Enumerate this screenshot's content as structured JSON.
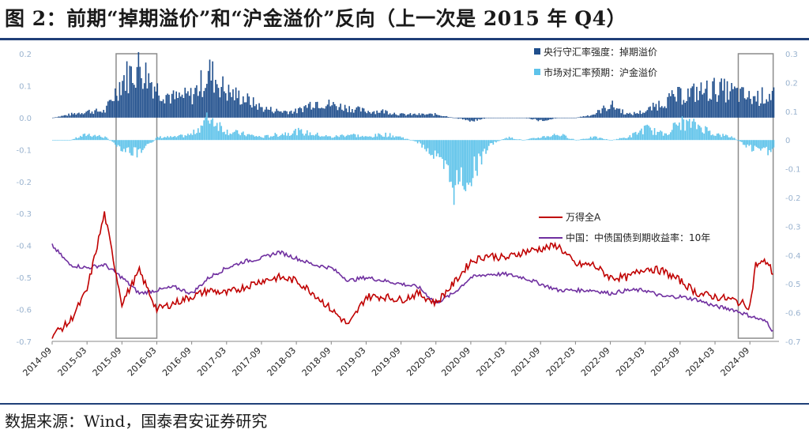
{
  "title": "图 2：前期“掉期溢价”和“沪金溢价”反向（上一次是 2015 年 Q4）",
  "source": "数据来源：Wind，国泰君安证券研究",
  "colors": {
    "swap_premium": "#1f4e8c",
    "gold_premium": "#5ec3ea",
    "wind_a": "#c00000",
    "cgb10y": "#7030a0",
    "box": "#8c8c8c",
    "rule": "#1f3f78"
  },
  "chart_data": {
    "type": "bar+line",
    "x_ticks": [
      "2014-09",
      "2015-03",
      "2015-09",
      "2016-03",
      "2016-09",
      "2017-03",
      "2017-09",
      "2018-03",
      "2018-09",
      "2019-03",
      "2019-09",
      "2020-03",
      "2020-09",
      "2021-03",
      "2021-09",
      "2022-03",
      "2022-09",
      "2023-03",
      "2023-09",
      "2024-03",
      "2024-09"
    ],
    "y_left_ticks": [
      "0.2",
      "0.1",
      "0.0",
      "-0.1",
      "-0.2",
      "-0.3",
      "-0.4",
      "-0.5",
      "-0.6",
      "-0.7"
    ],
    "y_left_range": [
      -0.7,
      0.2
    ],
    "y_right_ticks": [
      "0.3",
      "0.2",
      "0.1",
      "0",
      "-0.1",
      "-0.2",
      "-0.3",
      "-0.4",
      "-0.5",
      "-0.6",
      "-0.7"
    ],
    "y_right_range": [
      -0.7,
      0.3
    ],
    "legend_top": "top-right",
    "legend_bottom": "center-right",
    "highlight_boxes": [
      {
        "from": "2015-08",
        "to": "2016-03"
      },
      {
        "from": "2024-07",
        "to": "2025-01"
      }
    ],
    "series": [
      {
        "name": "央行守汇率强度：掉期溢价",
        "kind": "bar",
        "axis": "left",
        "points": [
          [
            "2014-09",
            0.0
          ],
          [
            "2014-12",
            0.01
          ],
          [
            "2015-03",
            0.02
          ],
          [
            "2015-06",
            0.02
          ],
          [
            "2015-09",
            0.12
          ],
          [
            "2015-12",
            0.16
          ],
          [
            "2016-03",
            0.09
          ],
          [
            "2016-06",
            0.06
          ],
          [
            "2016-09",
            0.07
          ],
          [
            "2016-12",
            0.14
          ],
          [
            "2017-03",
            0.08
          ],
          [
            "2017-06",
            0.06
          ],
          [
            "2017-09",
            0.03
          ],
          [
            "2017-12",
            0.02
          ],
          [
            "2018-03",
            0.02
          ],
          [
            "2018-06",
            0.05
          ],
          [
            "2018-09",
            0.04
          ],
          [
            "2018-12",
            0.03
          ],
          [
            "2019-03",
            0.02
          ],
          [
            "2019-06",
            0.02
          ],
          [
            "2019-09",
            0.01
          ],
          [
            "2019-12",
            0.01
          ],
          [
            "2020-03",
            0.01
          ],
          [
            "2020-06",
            0.0
          ],
          [
            "2020-09",
            -0.01
          ],
          [
            "2020-12",
            0.0
          ],
          [
            "2021-03",
            0.0
          ],
          [
            "2021-06",
            0.0
          ],
          [
            "2021-09",
            -0.01
          ],
          [
            "2021-12",
            0.0
          ],
          [
            "2022-03",
            0.0
          ],
          [
            "2022-06",
            0.01
          ],
          [
            "2022-09",
            0.04
          ],
          [
            "2022-12",
            0.01
          ],
          [
            "2023-03",
            0.02
          ],
          [
            "2023-06",
            0.05
          ],
          [
            "2023-09",
            0.07
          ],
          [
            "2023-12",
            0.08
          ],
          [
            "2024-03",
            0.09
          ],
          [
            "2024-06",
            0.08
          ],
          [
            "2024-09",
            0.06
          ],
          [
            "2024-12",
            0.07
          ],
          [
            "2025-01",
            0.08
          ]
        ]
      },
      {
        "name": "市场对汇率预期：沪金溢价",
        "kind": "bar",
        "axis": "right",
        "points": [
          [
            "2014-09",
            0.0
          ],
          [
            "2014-12",
            0.0
          ],
          [
            "2015-03",
            0.02
          ],
          [
            "2015-06",
            0.01
          ],
          [
            "2015-09",
            -0.03
          ],
          [
            "2015-12",
            -0.05
          ],
          [
            "2016-03",
            0.01
          ],
          [
            "2016-06",
            0.01
          ],
          [
            "2016-09",
            0.02
          ],
          [
            "2016-12",
            0.08
          ],
          [
            "2017-03",
            0.03
          ],
          [
            "2017-06",
            0.02
          ],
          [
            "2017-09",
            0.01
          ],
          [
            "2017-12",
            0.02
          ],
          [
            "2018-03",
            0.03
          ],
          [
            "2018-06",
            0.02
          ],
          [
            "2018-09",
            0.01
          ],
          [
            "2018-12",
            0.02
          ],
          [
            "2019-03",
            0.01
          ],
          [
            "2019-06",
            0.02
          ],
          [
            "2019-09",
            0.01
          ],
          [
            "2019-12",
            -0.01
          ],
          [
            "2020-03",
            -0.06
          ],
          [
            "2020-06",
            -0.16
          ],
          [
            "2020-09",
            -0.12
          ],
          [
            "2020-12",
            -0.02
          ],
          [
            "2021-03",
            0.01
          ],
          [
            "2021-06",
            0.0
          ],
          [
            "2021-09",
            0.01
          ],
          [
            "2021-12",
            0.02
          ],
          [
            "2022-03",
            0.0
          ],
          [
            "2022-06",
            0.01
          ],
          [
            "2022-09",
            0.0
          ],
          [
            "2022-12",
            0.01
          ],
          [
            "2023-03",
            0.04
          ],
          [
            "2023-06",
            0.02
          ],
          [
            "2023-09",
            0.06
          ],
          [
            "2023-12",
            0.05
          ],
          [
            "2024-03",
            0.02
          ],
          [
            "2024-06",
            0.01
          ],
          [
            "2024-09",
            -0.03
          ],
          [
            "2024-12",
            -0.04
          ],
          [
            "2025-01",
            -0.02
          ]
        ]
      },
      {
        "name": "万得全A",
        "kind": "line",
        "axis": "left",
        "points": [
          [
            "2014-09",
            -0.68
          ],
          [
            "2014-12",
            -0.64
          ],
          [
            "2015-03",
            -0.54
          ],
          [
            "2015-06",
            -0.3
          ],
          [
            "2015-09",
            -0.58
          ],
          [
            "2015-12",
            -0.48
          ],
          [
            "2016-03",
            -0.6
          ],
          [
            "2016-06",
            -0.58
          ],
          [
            "2016-09",
            -0.56
          ],
          [
            "2016-12",
            -0.54
          ],
          [
            "2017-03",
            -0.55
          ],
          [
            "2017-06",
            -0.53
          ],
          [
            "2017-09",
            -0.51
          ],
          [
            "2017-12",
            -0.5
          ],
          [
            "2018-03",
            -0.51
          ],
          [
            "2018-06",
            -0.55
          ],
          [
            "2018-09",
            -0.6
          ],
          [
            "2018-12",
            -0.65
          ],
          [
            "2019-03",
            -0.56
          ],
          [
            "2019-06",
            -0.56
          ],
          [
            "2019-09",
            -0.57
          ],
          [
            "2019-12",
            -0.55
          ],
          [
            "2020-03",
            -0.58
          ],
          [
            "2020-06",
            -0.52
          ],
          [
            "2020-09",
            -0.45
          ],
          [
            "2020-12",
            -0.43
          ],
          [
            "2021-03",
            -0.44
          ],
          [
            "2021-06",
            -0.42
          ],
          [
            "2021-09",
            -0.41
          ],
          [
            "2021-12",
            -0.4
          ],
          [
            "2022-03",
            -0.46
          ],
          [
            "2022-06",
            -0.46
          ],
          [
            "2022-09",
            -0.5
          ],
          [
            "2022-12",
            -0.5
          ],
          [
            "2023-03",
            -0.47
          ],
          [
            "2023-06",
            -0.48
          ],
          [
            "2023-09",
            -0.51
          ],
          [
            "2023-12",
            -0.55
          ],
          [
            "2024-03",
            -0.56
          ],
          [
            "2024-06",
            -0.57
          ],
          [
            "2024-09",
            -0.59
          ],
          [
            "2024-10",
            -0.46
          ],
          [
            "2024-12",
            -0.45
          ],
          [
            "2025-01",
            -0.49
          ]
        ]
      },
      {
        "name": "中国：中债国债到期收益率：10年",
        "kind": "line",
        "axis": "left",
        "points": [
          [
            "2014-09",
            -0.4
          ],
          [
            "2014-12",
            -0.46
          ],
          [
            "2015-03",
            -0.47
          ],
          [
            "2015-06",
            -0.46
          ],
          [
            "2015-09",
            -0.5
          ],
          [
            "2015-12",
            -0.55
          ],
          [
            "2016-03",
            -0.54
          ],
          [
            "2016-06",
            -0.53
          ],
          [
            "2016-09",
            -0.55
          ],
          [
            "2016-12",
            -0.5
          ],
          [
            "2017-03",
            -0.47
          ],
          [
            "2017-06",
            -0.45
          ],
          [
            "2017-09",
            -0.44
          ],
          [
            "2017-12",
            -0.42
          ],
          [
            "2018-03",
            -0.44
          ],
          [
            "2018-06",
            -0.46
          ],
          [
            "2018-09",
            -0.47
          ],
          [
            "2018-12",
            -0.51
          ],
          [
            "2019-03",
            -0.5
          ],
          [
            "2019-06",
            -0.51
          ],
          [
            "2019-09",
            -0.52
          ],
          [
            "2019-12",
            -0.53
          ],
          [
            "2020-03",
            -0.58
          ],
          [
            "2020-06",
            -0.55
          ],
          [
            "2020-09",
            -0.5
          ],
          [
            "2020-12",
            -0.49
          ],
          [
            "2021-03",
            -0.49
          ],
          [
            "2021-06",
            -0.5
          ],
          [
            "2021-09",
            -0.52
          ],
          [
            "2021-12",
            -0.54
          ],
          [
            "2022-03",
            -0.54
          ],
          [
            "2022-06",
            -0.54
          ],
          [
            "2022-09",
            -0.55
          ],
          [
            "2022-12",
            -0.54
          ],
          [
            "2023-03",
            -0.54
          ],
          [
            "2023-06",
            -0.56
          ],
          [
            "2023-09",
            -0.56
          ],
          [
            "2023-12",
            -0.57
          ],
          [
            "2024-03",
            -0.59
          ],
          [
            "2024-06",
            -0.6
          ],
          [
            "2024-09",
            -0.62
          ],
          [
            "2024-12",
            -0.64
          ],
          [
            "2025-01",
            -0.67
          ]
        ]
      }
    ]
  }
}
